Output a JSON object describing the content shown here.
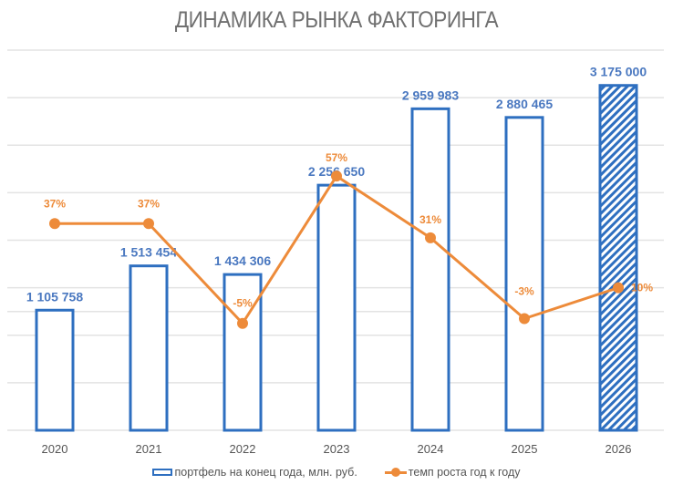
{
  "chart_data": {
    "type": "bar+line",
    "title": "ДИНАМИКА РЫНКА ФАКТОРИНГА",
    "categories": [
      "2020",
      "2021",
      "2022",
      "2023",
      "2024",
      "2025",
      "2026"
    ],
    "series": [
      {
        "name": "портфель на конец года, млн. руб.",
        "type": "bar",
        "values": [
          1105758,
          1513454,
          1434306,
          2256650,
          2959983,
          2880465,
          3175000
        ],
        "labels": [
          "1 105 758",
          "1 513 454",
          "1 434 306",
          "2 256 650",
          "2 959 983",
          "2 880 465",
          "3 175 000"
        ],
        "color": "#2e6fc0",
        "forecast_hatched": [
          false,
          false,
          false,
          false,
          false,
          false,
          true
        ]
      },
      {
        "name": "темп роста год к году",
        "type": "line",
        "axis": "secondary",
        "values": [
          37,
          37,
          -5,
          57,
          31,
          -3,
          10
        ],
        "labels": [
          "37%",
          "37%",
          "-5%",
          "57%",
          "31%",
          "-3%",
          "10%"
        ],
        "color": "#ed8b3a"
      }
    ],
    "ylim": [
      0,
      3500000
    ],
    "ylim_secondary": [
      -50,
      110
    ],
    "grid": true,
    "legend": "bottom"
  }
}
